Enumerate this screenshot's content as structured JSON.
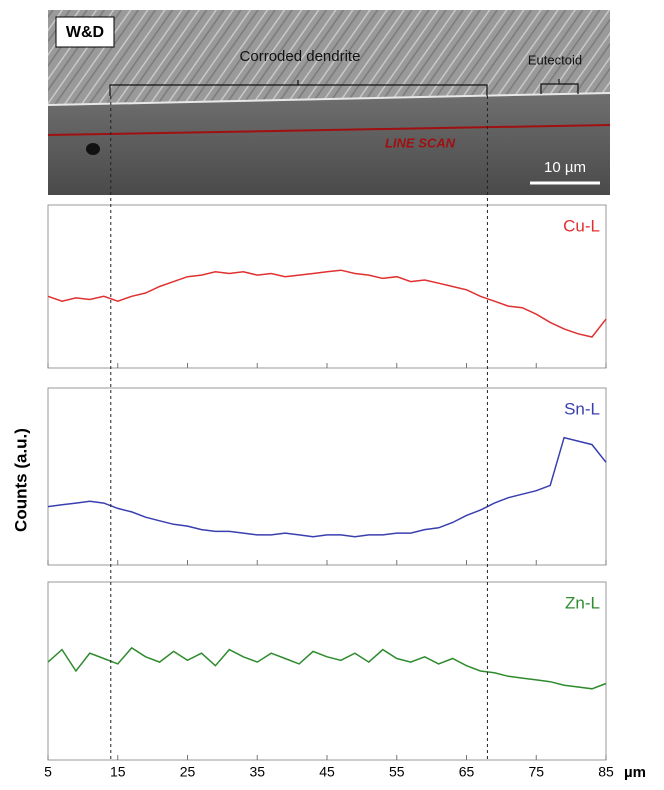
{
  "image": {
    "label": "W&D",
    "annotations": [
      "Corroded dendrite",
      "Eutectoid"
    ],
    "scan_label": "LINE SCAN",
    "scale_bar": "10 µm"
  },
  "guide_lines_x": [
    14,
    68
  ],
  "ylabel": "Counts (a.u.)",
  "xlabel": "µm",
  "chart_data": [
    {
      "type": "line",
      "x": [
        5,
        7,
        9,
        11,
        13,
        15,
        17,
        19,
        21,
        23,
        25,
        27,
        29,
        31,
        33,
        35,
        37,
        39,
        41,
        43,
        45,
        47,
        49,
        51,
        53,
        55,
        57,
        59,
        61,
        63,
        65,
        67,
        69,
        71,
        73,
        75,
        77,
        79,
        81,
        83,
        85
      ],
      "xlim": [
        5,
        85
      ],
      "xticks": [
        5,
        15,
        25,
        35,
        45,
        55,
        65,
        75,
        85
      ],
      "ylim": [
        0,
        100
      ],
      "series": [
        {
          "name": "Cu-L",
          "color": "#e03030",
          "values": [
            44,
            41,
            43,
            42,
            44,
            41,
            44,
            46,
            50,
            53,
            56,
            57,
            59,
            58,
            59,
            57,
            58,
            56,
            57,
            58,
            59,
            60,
            58,
            57,
            55,
            56,
            53,
            54,
            52,
            50,
            48,
            44,
            41,
            38,
            37,
            33,
            28,
            24,
            21,
            19,
            30
          ]
        }
      ]
    },
    {
      "type": "line",
      "x": [
        5,
        7,
        9,
        11,
        13,
        15,
        17,
        19,
        21,
        23,
        25,
        27,
        29,
        31,
        33,
        35,
        37,
        39,
        41,
        43,
        45,
        47,
        49,
        51,
        53,
        55,
        57,
        59,
        61,
        63,
        65,
        67,
        69,
        71,
        73,
        75,
        77,
        79,
        81,
        83,
        85
      ],
      "xlim": [
        5,
        85
      ],
      "xticks": [
        5,
        15,
        25,
        35,
        45,
        55,
        65,
        75,
        85
      ],
      "ylim": [
        0,
        100
      ],
      "series": [
        {
          "name": "Sn-L",
          "color": "#3a3fb0",
          "values": [
            33,
            34,
            35,
            36,
            35,
            32,
            30,
            27,
            25,
            23,
            22,
            20,
            19,
            19,
            18,
            17,
            17,
            18,
            17,
            16,
            17,
            17,
            16,
            17,
            17,
            18,
            18,
            20,
            21,
            24,
            28,
            31,
            35,
            38,
            40,
            42,
            45,
            72,
            70,
            68,
            58
          ]
        }
      ]
    },
    {
      "type": "line",
      "x": [
        5,
        7,
        9,
        11,
        13,
        15,
        17,
        19,
        21,
        23,
        25,
        27,
        29,
        31,
        33,
        35,
        37,
        39,
        41,
        43,
        45,
        47,
        49,
        51,
        53,
        55,
        57,
        59,
        61,
        63,
        65,
        67,
        69,
        71,
        73,
        75,
        77,
        79,
        81,
        83,
        85
      ],
      "xlim": [
        5,
        85
      ],
      "xticks": [
        5,
        15,
        25,
        35,
        45,
        55,
        65,
        75,
        85
      ],
      "ylim": [
        0,
        100
      ],
      "series": [
        {
          "name": "Zn-L",
          "color": "#2e8b2e",
          "values": [
            55,
            62,
            50,
            60,
            57,
            54,
            63,
            58,
            55,
            61,
            56,
            60,
            53,
            62,
            58,
            55,
            60,
            57,
            54,
            61,
            58,
            56,
            60,
            55,
            62,
            57,
            55,
            58,
            54,
            57,
            53,
            50,
            49,
            47,
            46,
            45,
            44,
            42,
            41,
            40,
            43
          ]
        }
      ]
    }
  ]
}
